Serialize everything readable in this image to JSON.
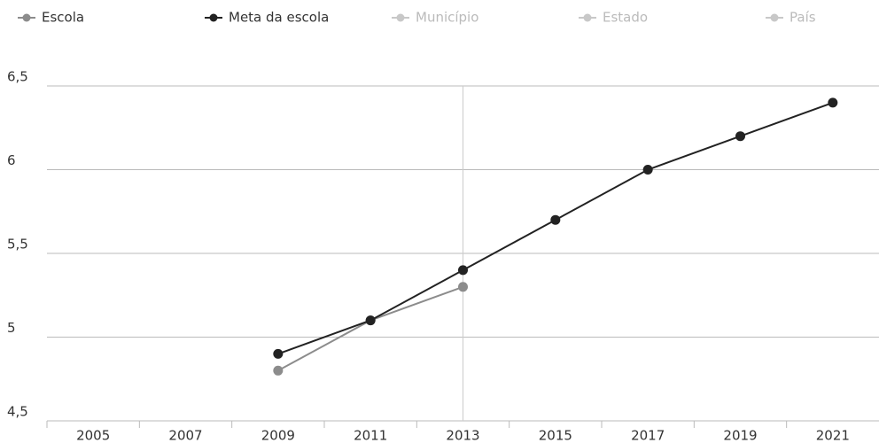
{
  "chart_data": {
    "type": "line",
    "categories": [
      "2005",
      "2007",
      "2009",
      "2011",
      "2013",
      "2015",
      "2017",
      "2019",
      "2021"
    ],
    "series": [
      {
        "name": "Escola",
        "color": "#8c8c8c",
        "values": [
          null,
          null,
          4.8,
          5.1,
          5.3,
          null,
          null,
          null,
          null
        ]
      },
      {
        "name": "Meta da escola",
        "color": "#222222",
        "values": [
          null,
          null,
          4.9,
          5.1,
          5.4,
          5.7,
          6.0,
          6.2,
          6.4
        ]
      },
      {
        "name": "Município",
        "color": "#c8c8c8",
        "values": [
          null,
          null,
          null,
          null,
          null,
          null,
          null,
          null,
          null
        ]
      },
      {
        "name": "Estado",
        "color": "#c8c8c8",
        "values": [
          null,
          null,
          null,
          null,
          null,
          null,
          null,
          null,
          null
        ]
      },
      {
        "name": "País",
        "color": "#c8c8c8",
        "values": [
          null,
          null,
          null,
          null,
          null,
          null,
          null,
          null,
          null
        ]
      }
    ],
    "ylim": [
      4.5,
      6.5
    ],
    "yticks": [
      {
        "value": 4.5,
        "label": "4,5"
      },
      5,
      {
        "value": 5.5,
        "label": "5,5"
      },
      6,
      {
        "value": 6.5,
        "label": "6,5"
      }
    ],
    "grid": true
  }
}
